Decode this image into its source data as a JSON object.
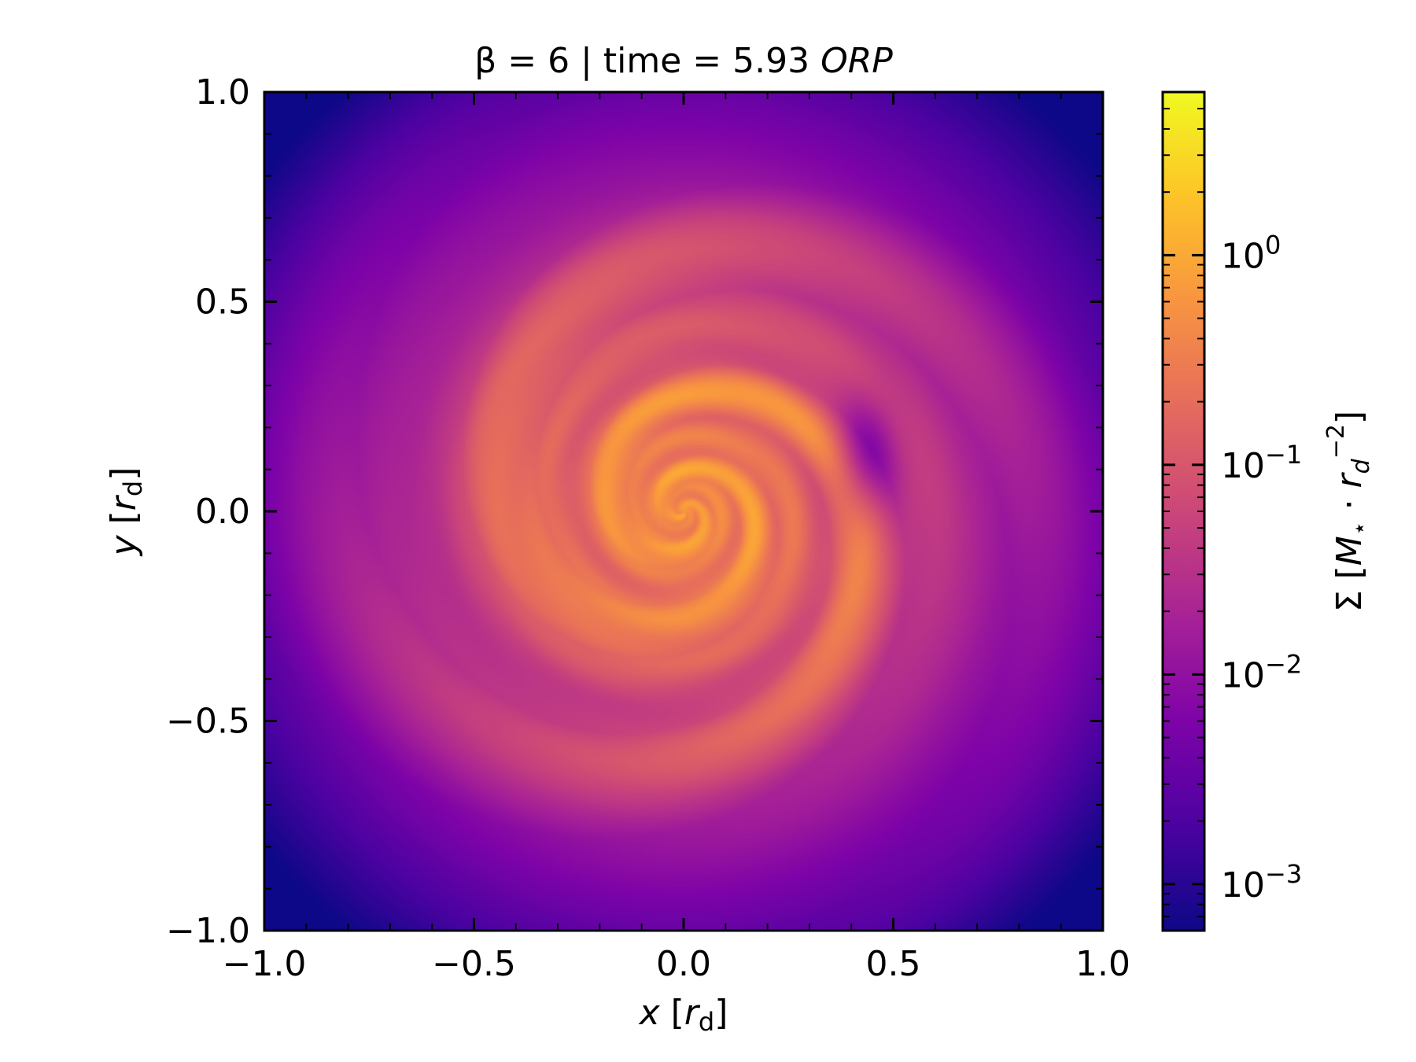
{
  "chart_data": {
    "type": "heatmap",
    "title": {
      "prefix": "β = 6 | time = 5.93 ",
      "unit": "ORP"
    },
    "xlabel": {
      "var": "x",
      "unit": "r",
      "sub": "d"
    },
    "ylabel": {
      "var": "y",
      "unit": "r",
      "sub": "d"
    },
    "xlim": [
      -1.0,
      1.0
    ],
    "ylim": [
      -1.0,
      1.0
    ],
    "xticks": [
      -1.0,
      -0.5,
      0.0,
      0.5,
      1.0
    ],
    "yticks": [
      -1.0,
      -0.5,
      0.0,
      0.5,
      1.0
    ],
    "xtick_labels": [
      "−1.0",
      "−0.5",
      "0.0",
      "0.5",
      "1.0"
    ],
    "ytick_labels": [
      "−1.0",
      "−0.5",
      "0.0",
      "0.5",
      "1.0"
    ],
    "colormap": "plasma",
    "colorbar": {
      "label": "Σ [M⋆ · r_d^-2]",
      "scale": "log",
      "range": [
        0.0006,
        6.0
      ],
      "ticks": [
        0.001,
        0.01,
        0.1,
        1
      ],
      "tick_labels": [
        {
          "base": "10",
          "exp": "−3"
        },
        {
          "base": "10",
          "exp": "−2"
        },
        {
          "base": "10",
          "exp": "−1"
        },
        {
          "base": "10",
          "exp": "0"
        }
      ]
    },
    "field_description_values": {
      "center": [
        0.0,
        0.0
      ],
      "peak_value_at_center": 1.0,
      "background_value_at_corners": 0.001,
      "spiral_arms": 2
    }
  }
}
